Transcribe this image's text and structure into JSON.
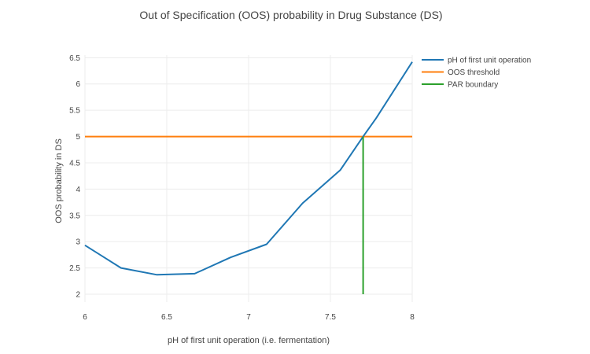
{
  "chart_data": {
    "type": "line",
    "title": "Out of Specification (OOS) probability in Drug Substance (DS)",
    "xlabel": "pH of first unit operation (i.e. fermentation)",
    "ylabel": "OOS probability in DS",
    "xlim": [
      6,
      8
    ],
    "ylim": [
      1.85,
      6.55
    ],
    "x_ticks": [
      6,
      6.5,
      7,
      7.5,
      8
    ],
    "x_tick_labels": [
      "6",
      "6.5",
      "7",
      "7.5",
      "8"
    ],
    "y_ticks": [
      2,
      2.5,
      3,
      3.5,
      4,
      4.5,
      5,
      5.5,
      6,
      6.5
    ],
    "y_tick_labels": [
      "2",
      "2.5",
      "3",
      "3.5",
      "4",
      "4.5",
      "5",
      "5.5",
      "6",
      "6.5"
    ],
    "grid": true,
    "legend_position": "top-right",
    "series": [
      {
        "name": "pH of first unit operation",
        "color": "#1f77b4",
        "x": [
          6.0,
          6.22,
          6.44,
          6.67,
          6.89,
          7.11,
          7.33,
          7.56,
          7.7,
          7.78,
          8.0
        ],
        "y": [
          2.93,
          2.5,
          2.37,
          2.39,
          2.7,
          2.95,
          3.73,
          4.36,
          5.0,
          5.35,
          6.42
        ]
      },
      {
        "name": "OOS threshold",
        "color": "#ff7f0e",
        "x": [
          6.0,
          8.0
        ],
        "y": [
          5.0,
          5.0
        ]
      },
      {
        "name": "PAR boundary",
        "color": "#2ca02c",
        "x": [
          7.7,
          7.7
        ],
        "y": [
          2.0,
          5.0
        ]
      }
    ]
  }
}
